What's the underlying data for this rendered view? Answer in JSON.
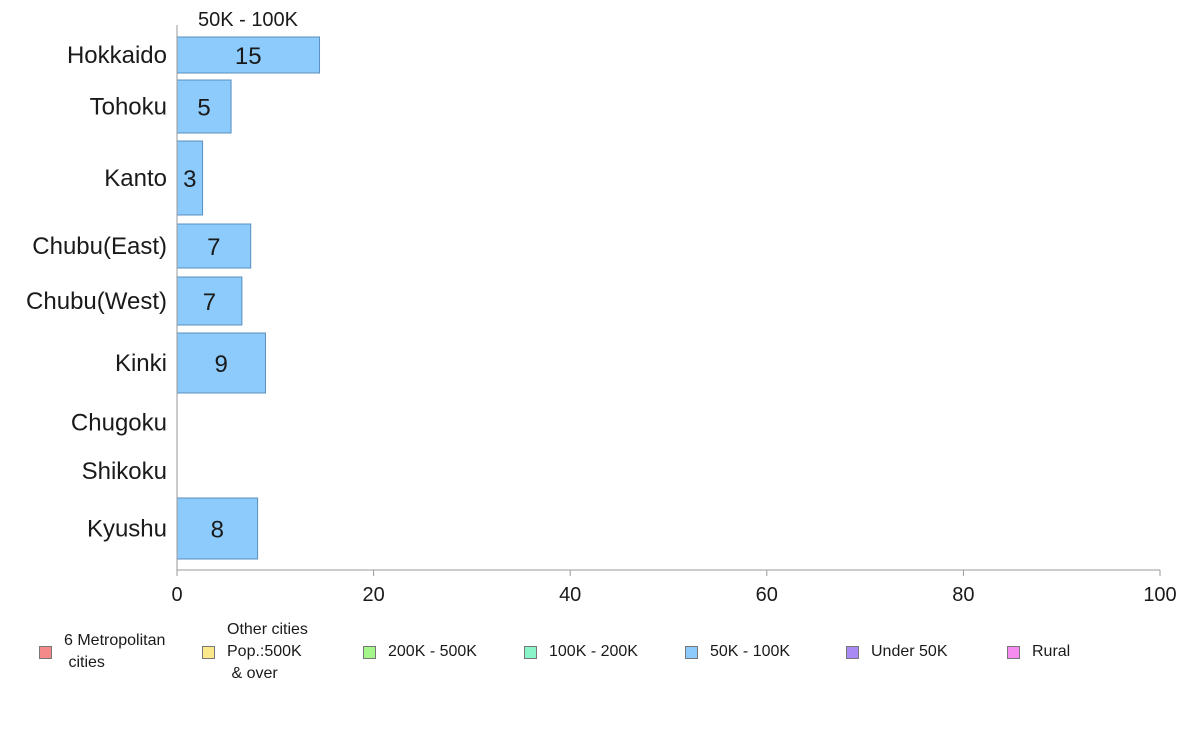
{
  "chart_data": {
    "type": "bar",
    "orientation": "horizontal",
    "title": "50K - 100K",
    "categories": [
      "Hokkaido",
      "Tohoku",
      "Kanto",
      "Chubu(East)",
      "Chubu(West)",
      "Kinki",
      "Chugoku",
      "Shikoku",
      "Kyushu"
    ],
    "values": [
      14.5,
      5.5,
      2.6,
      7.5,
      6.6,
      9,
      0,
      0,
      8.2
    ],
    "data_labels": [
      "15",
      "5",
      "3",
      "7",
      "7",
      "9",
      "",
      "",
      "8"
    ],
    "xlim": [
      0,
      100
    ],
    "x_ticks": [
      "0",
      "20",
      "40",
      "60",
      "80",
      "100"
    ],
    "bar_color": "#8ccbfb",
    "bar_stroke": "#5a8fc0",
    "grid": false,
    "legend_position": "bottom",
    "legend": [
      {
        "label": "6 Metropolitan\n cities",
        "color": "#f58a8a"
      },
      {
        "label": "Other cities\nPop.:500K\n & over",
        "color": "#fbe88b"
      },
      {
        "label": "200K - 500K",
        "color": "#a4f58a"
      },
      {
        "label": "100K - 200K",
        "color": "#8af5c9"
      },
      {
        "label": "50K - 100K",
        "color": "#8ccbfb"
      },
      {
        "label": "Under 50K",
        "color": "#a98af5"
      },
      {
        "label": "Rural",
        "color": "#f58af0"
      }
    ]
  }
}
